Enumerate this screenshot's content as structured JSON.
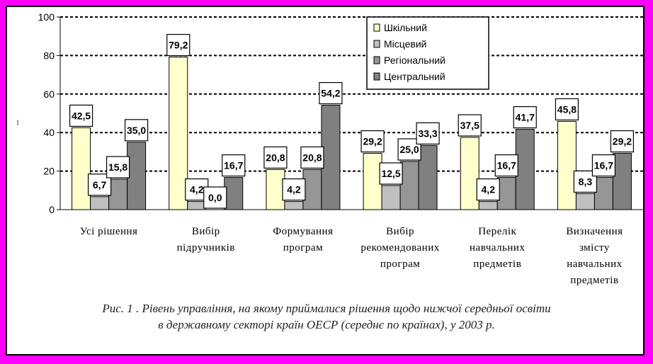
{
  "chart_data": {
    "type": "bar",
    "categories": [
      [
        "Усі рішення"
      ],
      [
        "Вибір",
        "підручників"
      ],
      [
        "Формування",
        "програм"
      ],
      [
        "Вибір",
        "рекомендованих",
        "програм"
      ],
      [
        "Перелік",
        "навчальних",
        "предметів"
      ],
      [
        "Визначення",
        "змісту",
        "навчальних",
        "предметів"
      ]
    ],
    "series": [
      {
        "name": "Шкільний",
        "color": "#ffffcc",
        "values": [
          42.5,
          79.2,
          20.8,
          29.2,
          37.5,
          45.8
        ]
      },
      {
        "name": "Місцевий",
        "color": "#bfbfbf",
        "values": [
          6.7,
          4.2,
          4.2,
          12.5,
          4.2,
          8.3
        ]
      },
      {
        "name": "Регіональний",
        "color": "#969696",
        "values": [
          15.8,
          0.0,
          20.8,
          25.0,
          16.7,
          16.7
        ]
      },
      {
        "name": "Центральний",
        "color": "#808080",
        "values": [
          35.0,
          16.7,
          54.2,
          33.3,
          41.7,
          29.2
        ]
      }
    ],
    "data_labels": [
      [
        "42,5",
        "79,2",
        "20,8",
        "29,2",
        "37,5",
        "45,8"
      ],
      [
        "6,7",
        "4,2",
        "4,2",
        "12,5",
        "4,2",
        "8,3"
      ],
      [
        "15,8",
        "0,0",
        "20,8",
        "25,0",
        "16,7",
        "16,7"
      ],
      [
        "35,0",
        "16,7",
        "54,2",
        "33,3",
        "41,7",
        "29,2"
      ]
    ],
    "ylim": [
      0,
      100
    ],
    "yticks": [
      0,
      20,
      40,
      60,
      80,
      100
    ],
    "ytick_labels": [
      "0",
      "20",
      "40",
      "60",
      "80",
      "100"
    ],
    "ylabel": "--",
    "grid": "dashed horizontal",
    "legend_position": "top-right"
  },
  "caption": {
    "line1": "Рис. 1 . Рівень управління, на якому приймалися рішення щодо нижчої середньої освіти",
    "line2": "в державному секторі країн ОЕСР (середнє по країнах), у 2003 р."
  }
}
